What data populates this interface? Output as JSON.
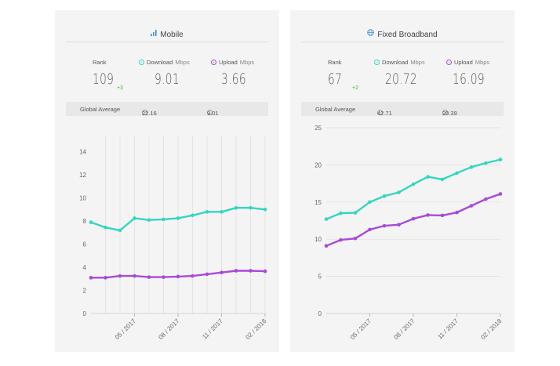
{
  "panels": [
    {
      "title": "Mobile",
      "icon": "signal-bars-icon",
      "rank_label": "Rank",
      "rank": "109",
      "rank_change": "+3",
      "download_label": "Download",
      "download_unit": "Mbps",
      "download": "9.01",
      "upload_label": "Upload",
      "upload_unit": "Mbps",
      "upload": "3.66",
      "global_label": "Global Average",
      "global_download": "22.16",
      "global_upload": "9.01"
    },
    {
      "title": "Fixed Broadband",
      "icon": "globe-icon",
      "rank_label": "Rank",
      "rank": "67",
      "rank_change": "+2",
      "download_label": "Download",
      "download_unit": "Mbps",
      "download": "20.72",
      "upload_label": "Upload",
      "upload_unit": "Mbps",
      "upload": "16.09",
      "global_label": "Global Average",
      "global_download": "42.71",
      "global_upload": "20.39"
    }
  ],
  "colors": {
    "download": "#35d6c0",
    "upload": "#a84ad6",
    "grid": "#dddddd",
    "axis": "#666666",
    "change": "#3db84a"
  },
  "chart_data": [
    {
      "type": "line",
      "ylim": [
        0,
        15
      ],
      "yticks": [
        0,
        2,
        4,
        6,
        8,
        10,
        12,
        14
      ],
      "grid": "vertical",
      "x": [
        0,
        1,
        2,
        3,
        4,
        5,
        6,
        7,
        8,
        9,
        10,
        11,
        12
      ],
      "xticks": [
        {
          "i": 3,
          "label": "05 / 2017"
        },
        {
          "i": 6,
          "label": "08 / 2017"
        },
        {
          "i": 9,
          "label": "11 / 2017"
        },
        {
          "i": 12,
          "label": "02 / 2018"
        }
      ],
      "series": [
        {
          "key": "download",
          "values": [
            7.9,
            7.45,
            7.2,
            8.25,
            8.1,
            8.15,
            8.25,
            8.5,
            8.8,
            8.8,
            9.15,
            9.15,
            9.01
          ]
        },
        {
          "key": "upload",
          "values": [
            3.1,
            3.1,
            3.25,
            3.25,
            3.15,
            3.15,
            3.2,
            3.25,
            3.4,
            3.55,
            3.7,
            3.7,
            3.66
          ]
        }
      ]
    },
    {
      "type": "line",
      "ylim": [
        0,
        25
      ],
      "yticks": [
        0,
        5,
        10,
        15,
        20,
        25
      ],
      "grid": "horizontal",
      "x": [
        0,
        1,
        2,
        3,
        4,
        5,
        6,
        7,
        8,
        9,
        10,
        11,
        12
      ],
      "xticks": [
        {
          "i": 3,
          "label": "05 / 2017"
        },
        {
          "i": 6,
          "label": "08 / 2017"
        },
        {
          "i": 9,
          "label": "11 / 2017"
        },
        {
          "i": 12,
          "label": "02 / 2018"
        }
      ],
      "series": [
        {
          "key": "download",
          "values": [
            12.7,
            13.5,
            13.55,
            15.0,
            15.8,
            16.3,
            17.4,
            18.4,
            18.05,
            18.9,
            19.7,
            20.25,
            20.72
          ]
        },
        {
          "key": "upload",
          "values": [
            9.1,
            9.9,
            10.1,
            11.3,
            11.8,
            11.95,
            12.75,
            13.25,
            13.2,
            13.6,
            14.5,
            15.4,
            16.09
          ]
        }
      ]
    }
  ]
}
